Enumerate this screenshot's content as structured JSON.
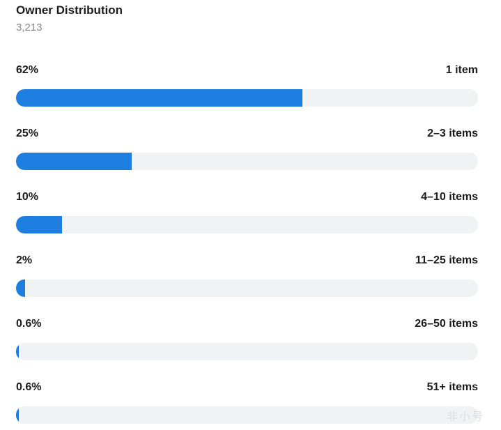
{
  "chart_data": {
    "type": "bar",
    "orientation": "horizontal",
    "title": "Owner Distribution",
    "subtitle": "3,213",
    "categories": [
      "1 item",
      "2–3 items",
      "4–10 items",
      "11–25 items",
      "26–50 items",
      "51+ items"
    ],
    "value_labels": [
      "62%",
      "25%",
      "10%",
      "2%",
      "0.6%",
      "0.6%"
    ],
    "values": [
      62,
      25,
      10,
      2,
      0.6,
      0.6
    ],
    "xlim": [
      0,
      100
    ],
    "bar_color": "#1e7ee0",
    "track_color": "#f1f2f4"
  },
  "watermark": "非小号"
}
